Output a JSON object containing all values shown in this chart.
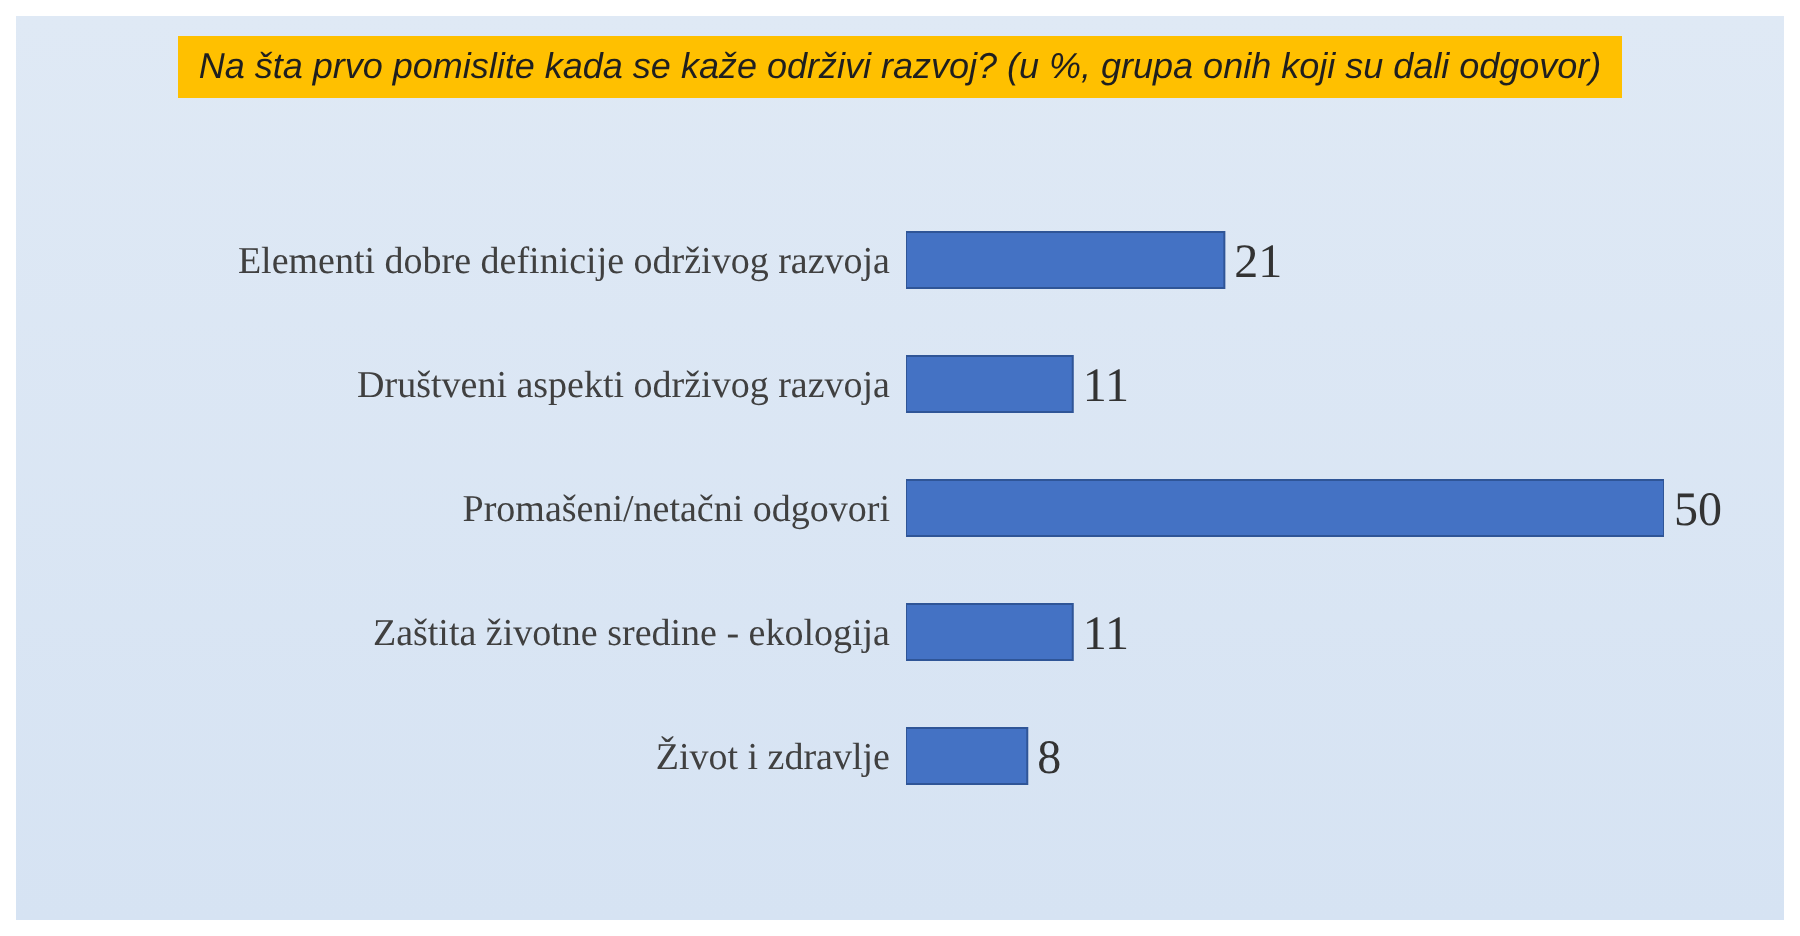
{
  "chart_data": {
    "type": "bar",
    "orientation": "horizontal",
    "title": "Na šta prvo pomislite kada se kaže održivi razvoj? (u %, grupa onih koji su dali odgovor)",
    "categories": [
      "Elementi dobre definicije održivog razvoja",
      "Društveni aspekti održivog razvoja ",
      "Promašeni/netačni odgovori",
      "Zaštita životne sredine - ekologija",
      "Život i zdravlje"
    ],
    "values": [
      21,
      11,
      50,
      11,
      8
    ],
    "color": "#4472c4",
    "data_labels": true,
    "xlim": [
      0,
      50
    ],
    "tick_labels": "y"
  }
}
